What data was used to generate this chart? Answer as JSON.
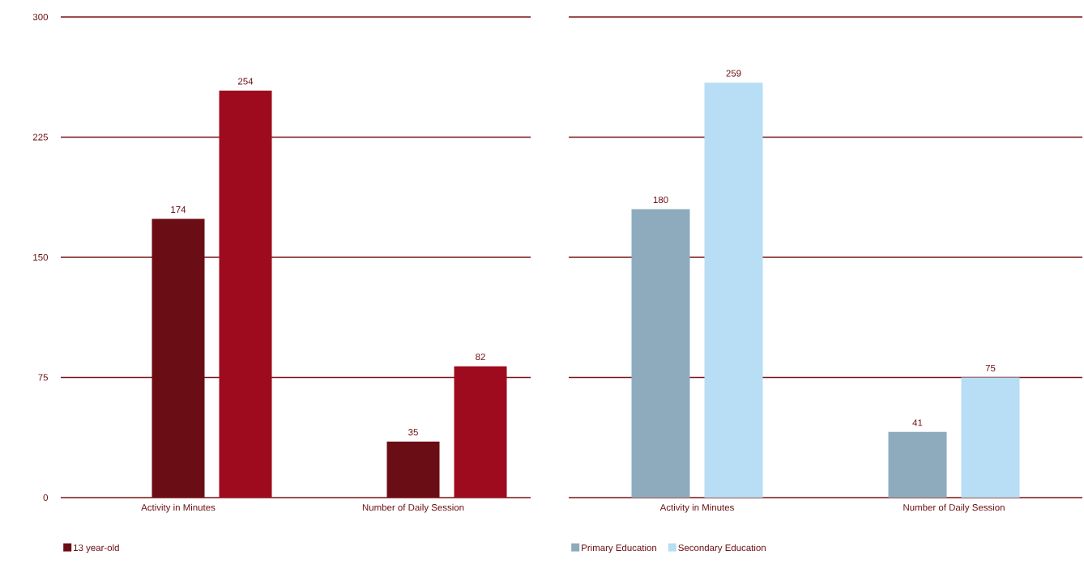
{
  "chart_data": [
    {
      "type": "bar",
      "categories": [
        "Activity in Minutes",
        "Number of Daily Session"
      ],
      "series": [
        {
          "name": "13 year-old",
          "color": "#6b0d14",
          "values": [
            174,
            35
          ]
        },
        {
          "color": "#9e0b1e",
          "values": [
            254,
            82
          ]
        }
      ],
      "ylim": [
        0,
        300
      ],
      "yticks": [
        0,
        75,
        150,
        225,
        300
      ],
      "grid": "y",
      "legend": "bottom left",
      "data_labels": true
    },
    {
      "type": "bar",
      "categories": [
        "Activity in Minutes",
        "Number of Daily Session"
      ],
      "series": [
        {
          "name": "Primary Education",
          "color": "#8eabbd",
          "values": [
            180,
            41
          ]
        },
        {
          "name": "Secondary  Education",
          "color": "#b7def5",
          "values": [
            259,
            75
          ]
        }
      ],
      "ylim": [
        0,
        300
      ],
      "yticks": [
        0,
        75,
        150,
        225,
        300
      ],
      "tick_labels": "x",
      "grid": "y",
      "legend": "bottom left",
      "data_labels": true
    }
  ]
}
